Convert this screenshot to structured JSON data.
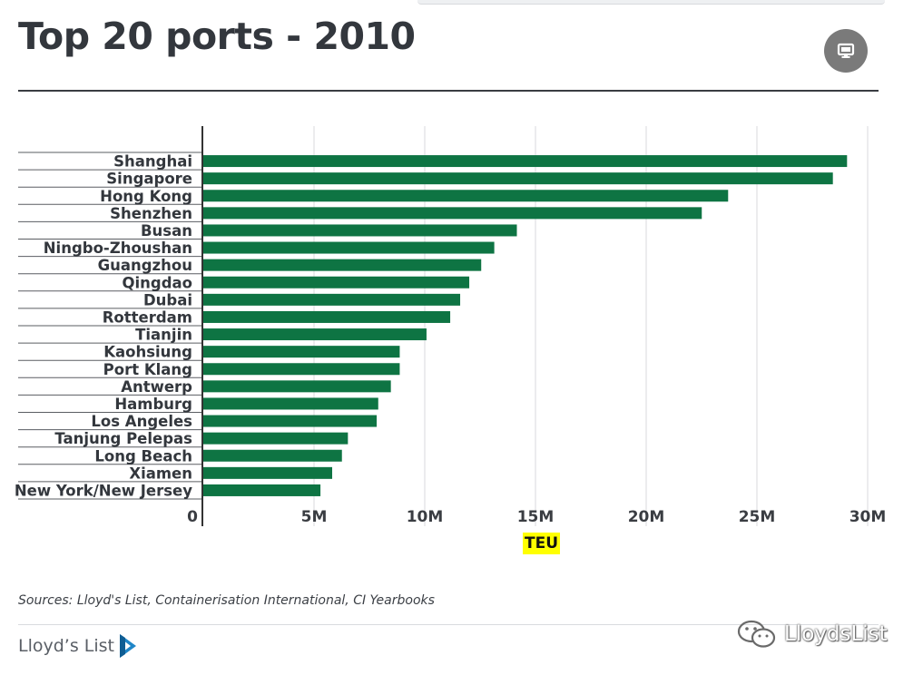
{
  "header": {
    "title": "Top 20 ports - 2010",
    "display_icon": "monitor-icon"
  },
  "chart_data": {
    "type": "bar",
    "orientation": "horizontal",
    "title": "Top 20 ports - 2010",
    "xlabel": "TEU",
    "ylabel": "",
    "xlim": [
      0,
      30000000
    ],
    "x_ticks": [
      {
        "value": 0,
        "label": "0"
      },
      {
        "value": 5000000,
        "label": "5M"
      },
      {
        "value": 10000000,
        "label": "10M"
      },
      {
        "value": 15000000,
        "label": "15M"
      },
      {
        "value": 20000000,
        "label": "20M"
      },
      {
        "value": 25000000,
        "label": "25M"
      },
      {
        "value": 30000000,
        "label": "30M"
      }
    ],
    "grid": true,
    "legend": "none",
    "bar_color": "#0e7443",
    "categories": [
      "Shanghai",
      "Singapore",
      "Hong Kong",
      "Shenzhen",
      "Busan",
      "Ningbo-Zhoushan",
      "Guangzhou",
      "Qingdao",
      "Dubai",
      "Rotterdam",
      "Tianjin",
      "Kaohsiung",
      "Port Klang",
      "Antwerp",
      "Hamburg",
      "Los Angeles",
      "Tanjung Pelepas",
      "Long Beach",
      "Xiamen",
      "New York/New Jersey"
    ],
    "values": [
      29070000,
      28430000,
      23700000,
      22510000,
      14160000,
      13140000,
      12550000,
      12010000,
      11600000,
      11150000,
      10080000,
      8870000,
      8870000,
      8470000,
      7900000,
      7830000,
      6530000,
      6260000,
      5820000,
      5290000
    ]
  },
  "footer": {
    "sources": "Sources: Lloyd's List, Containerisation International, CI Yearbooks",
    "brand": "Lloyd’s List",
    "brand_icon": "lloyds-list-logo-icon",
    "watermark": "LloydsList",
    "watermark_icon": "wechat-icon"
  }
}
